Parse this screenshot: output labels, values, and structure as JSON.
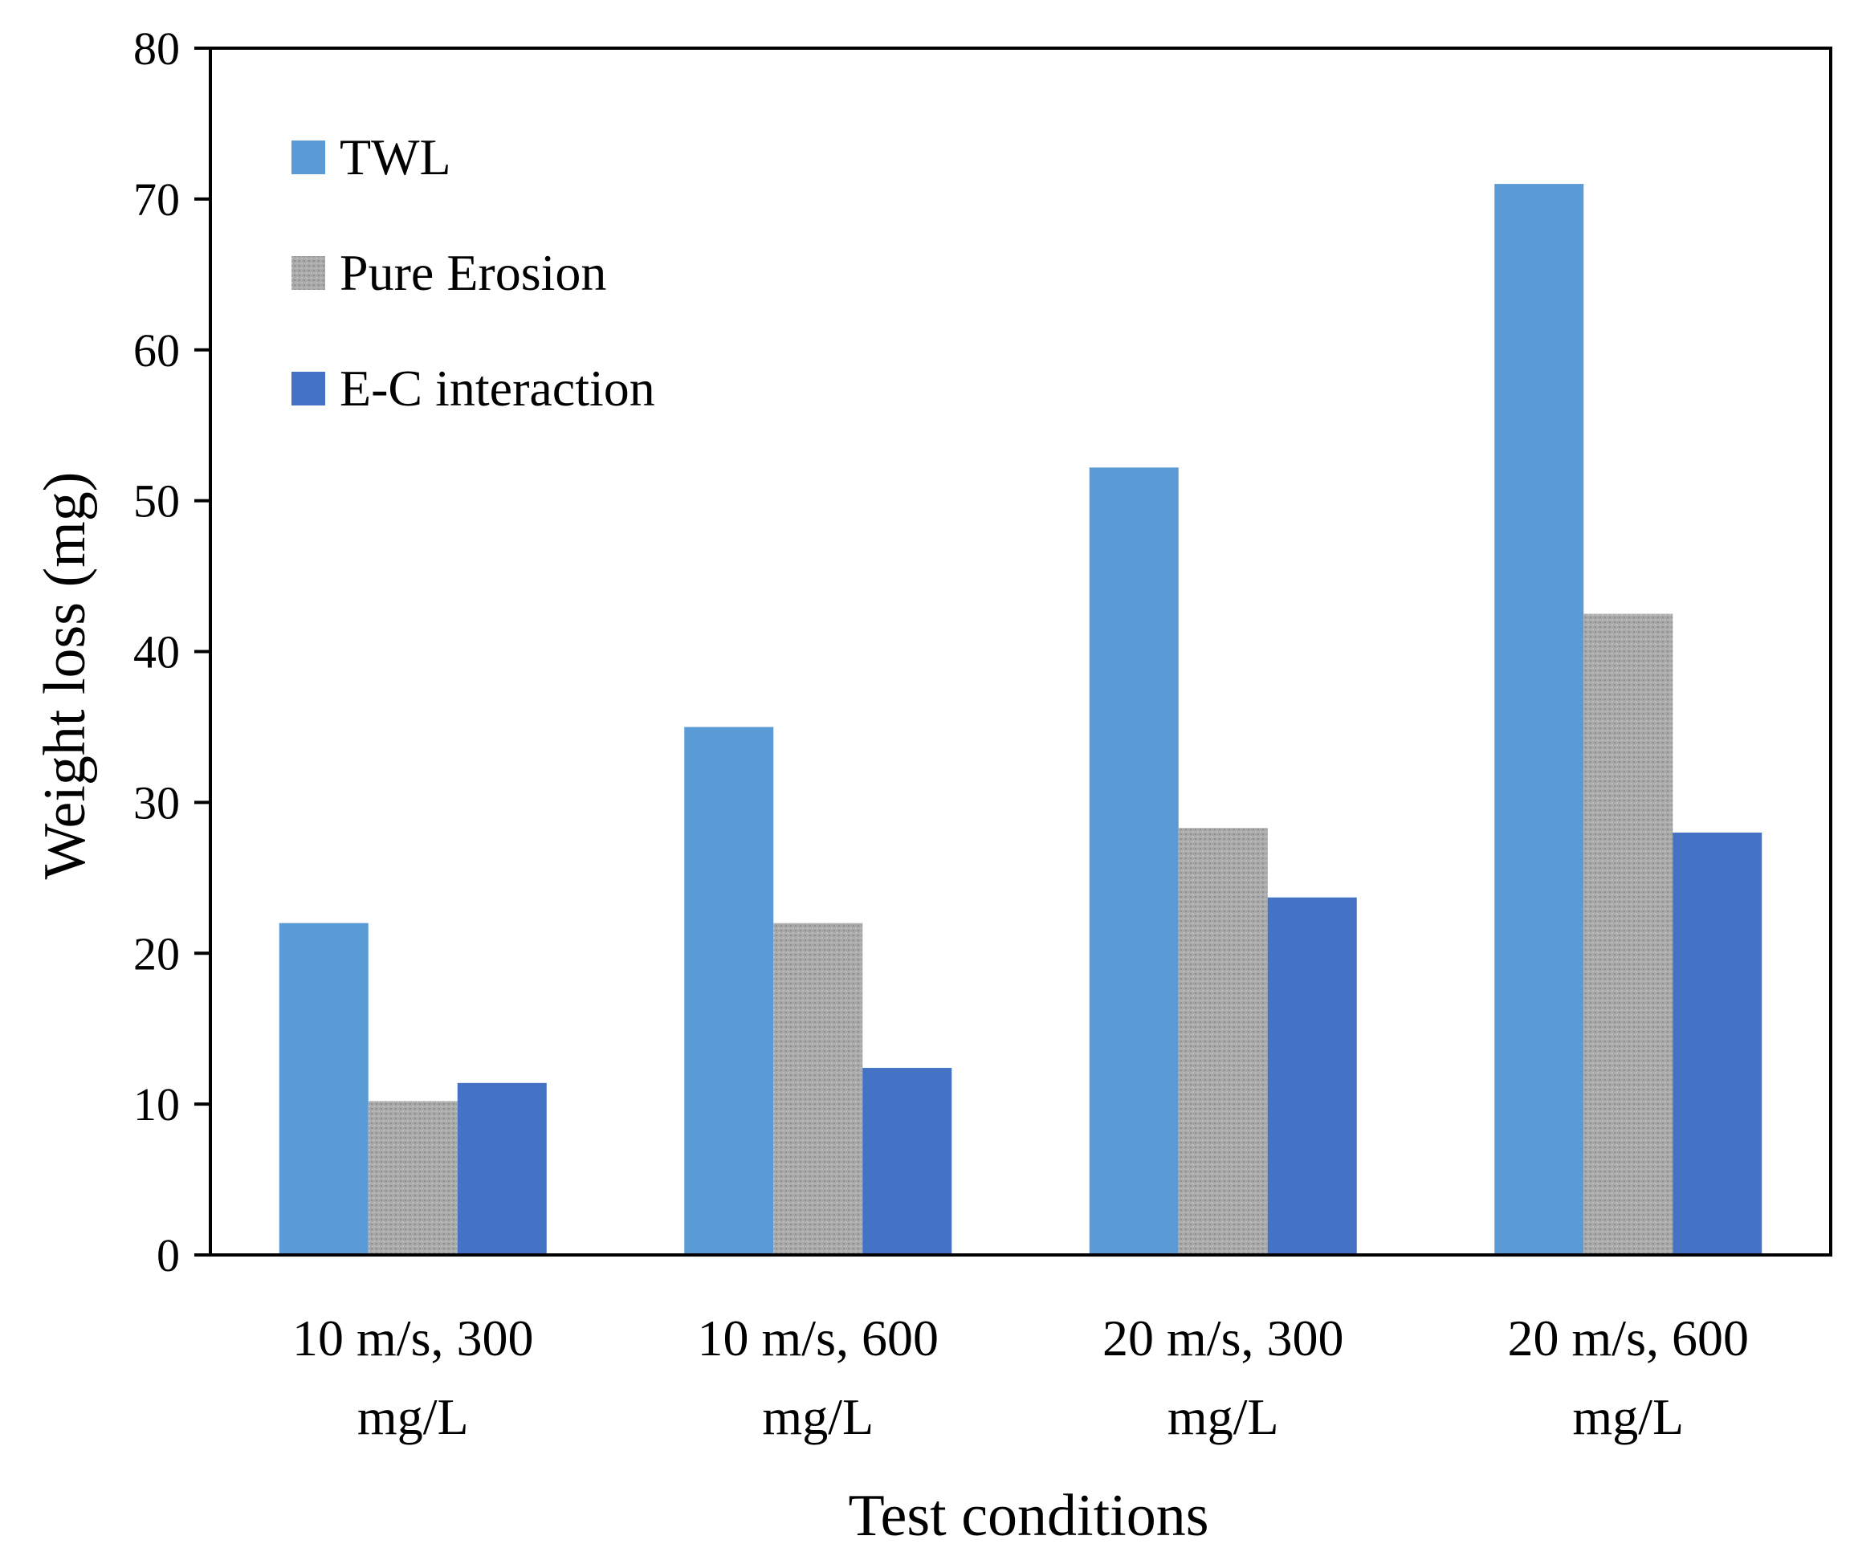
{
  "chart_data": {
    "type": "bar",
    "title": "",
    "xlabel": "Test conditions",
    "ylabel": "Weight loss (mg)",
    "ylim": [
      0,
      80
    ],
    "yticks": [
      0,
      10,
      20,
      30,
      40,
      50,
      60,
      70,
      80
    ],
    "legend_position": "top-left",
    "grid": false,
    "categories": [
      [
        "10 m/s, 300",
        "mg/L"
      ],
      [
        "10 m/s, 600",
        "mg/L"
      ],
      [
        "20 m/s, 300",
        "mg/L"
      ],
      [
        "20 m/s, 600",
        "mg/L"
      ]
    ],
    "series": [
      {
        "name": "TWL",
        "color": "#5B9BD5",
        "pattern": "solid",
        "values": [
          22,
          35,
          52.2,
          71
        ]
      },
      {
        "name": "Pure Erosion",
        "color": "#A6A6A6",
        "pattern": "stipple",
        "values": [
          10.2,
          22,
          28.3,
          42.5
        ]
      },
      {
        "name": "E-C interaction",
        "color": "#4472C4",
        "pattern": "solid",
        "values": [
          11.4,
          12.4,
          23.7,
          28
        ]
      }
    ]
  }
}
